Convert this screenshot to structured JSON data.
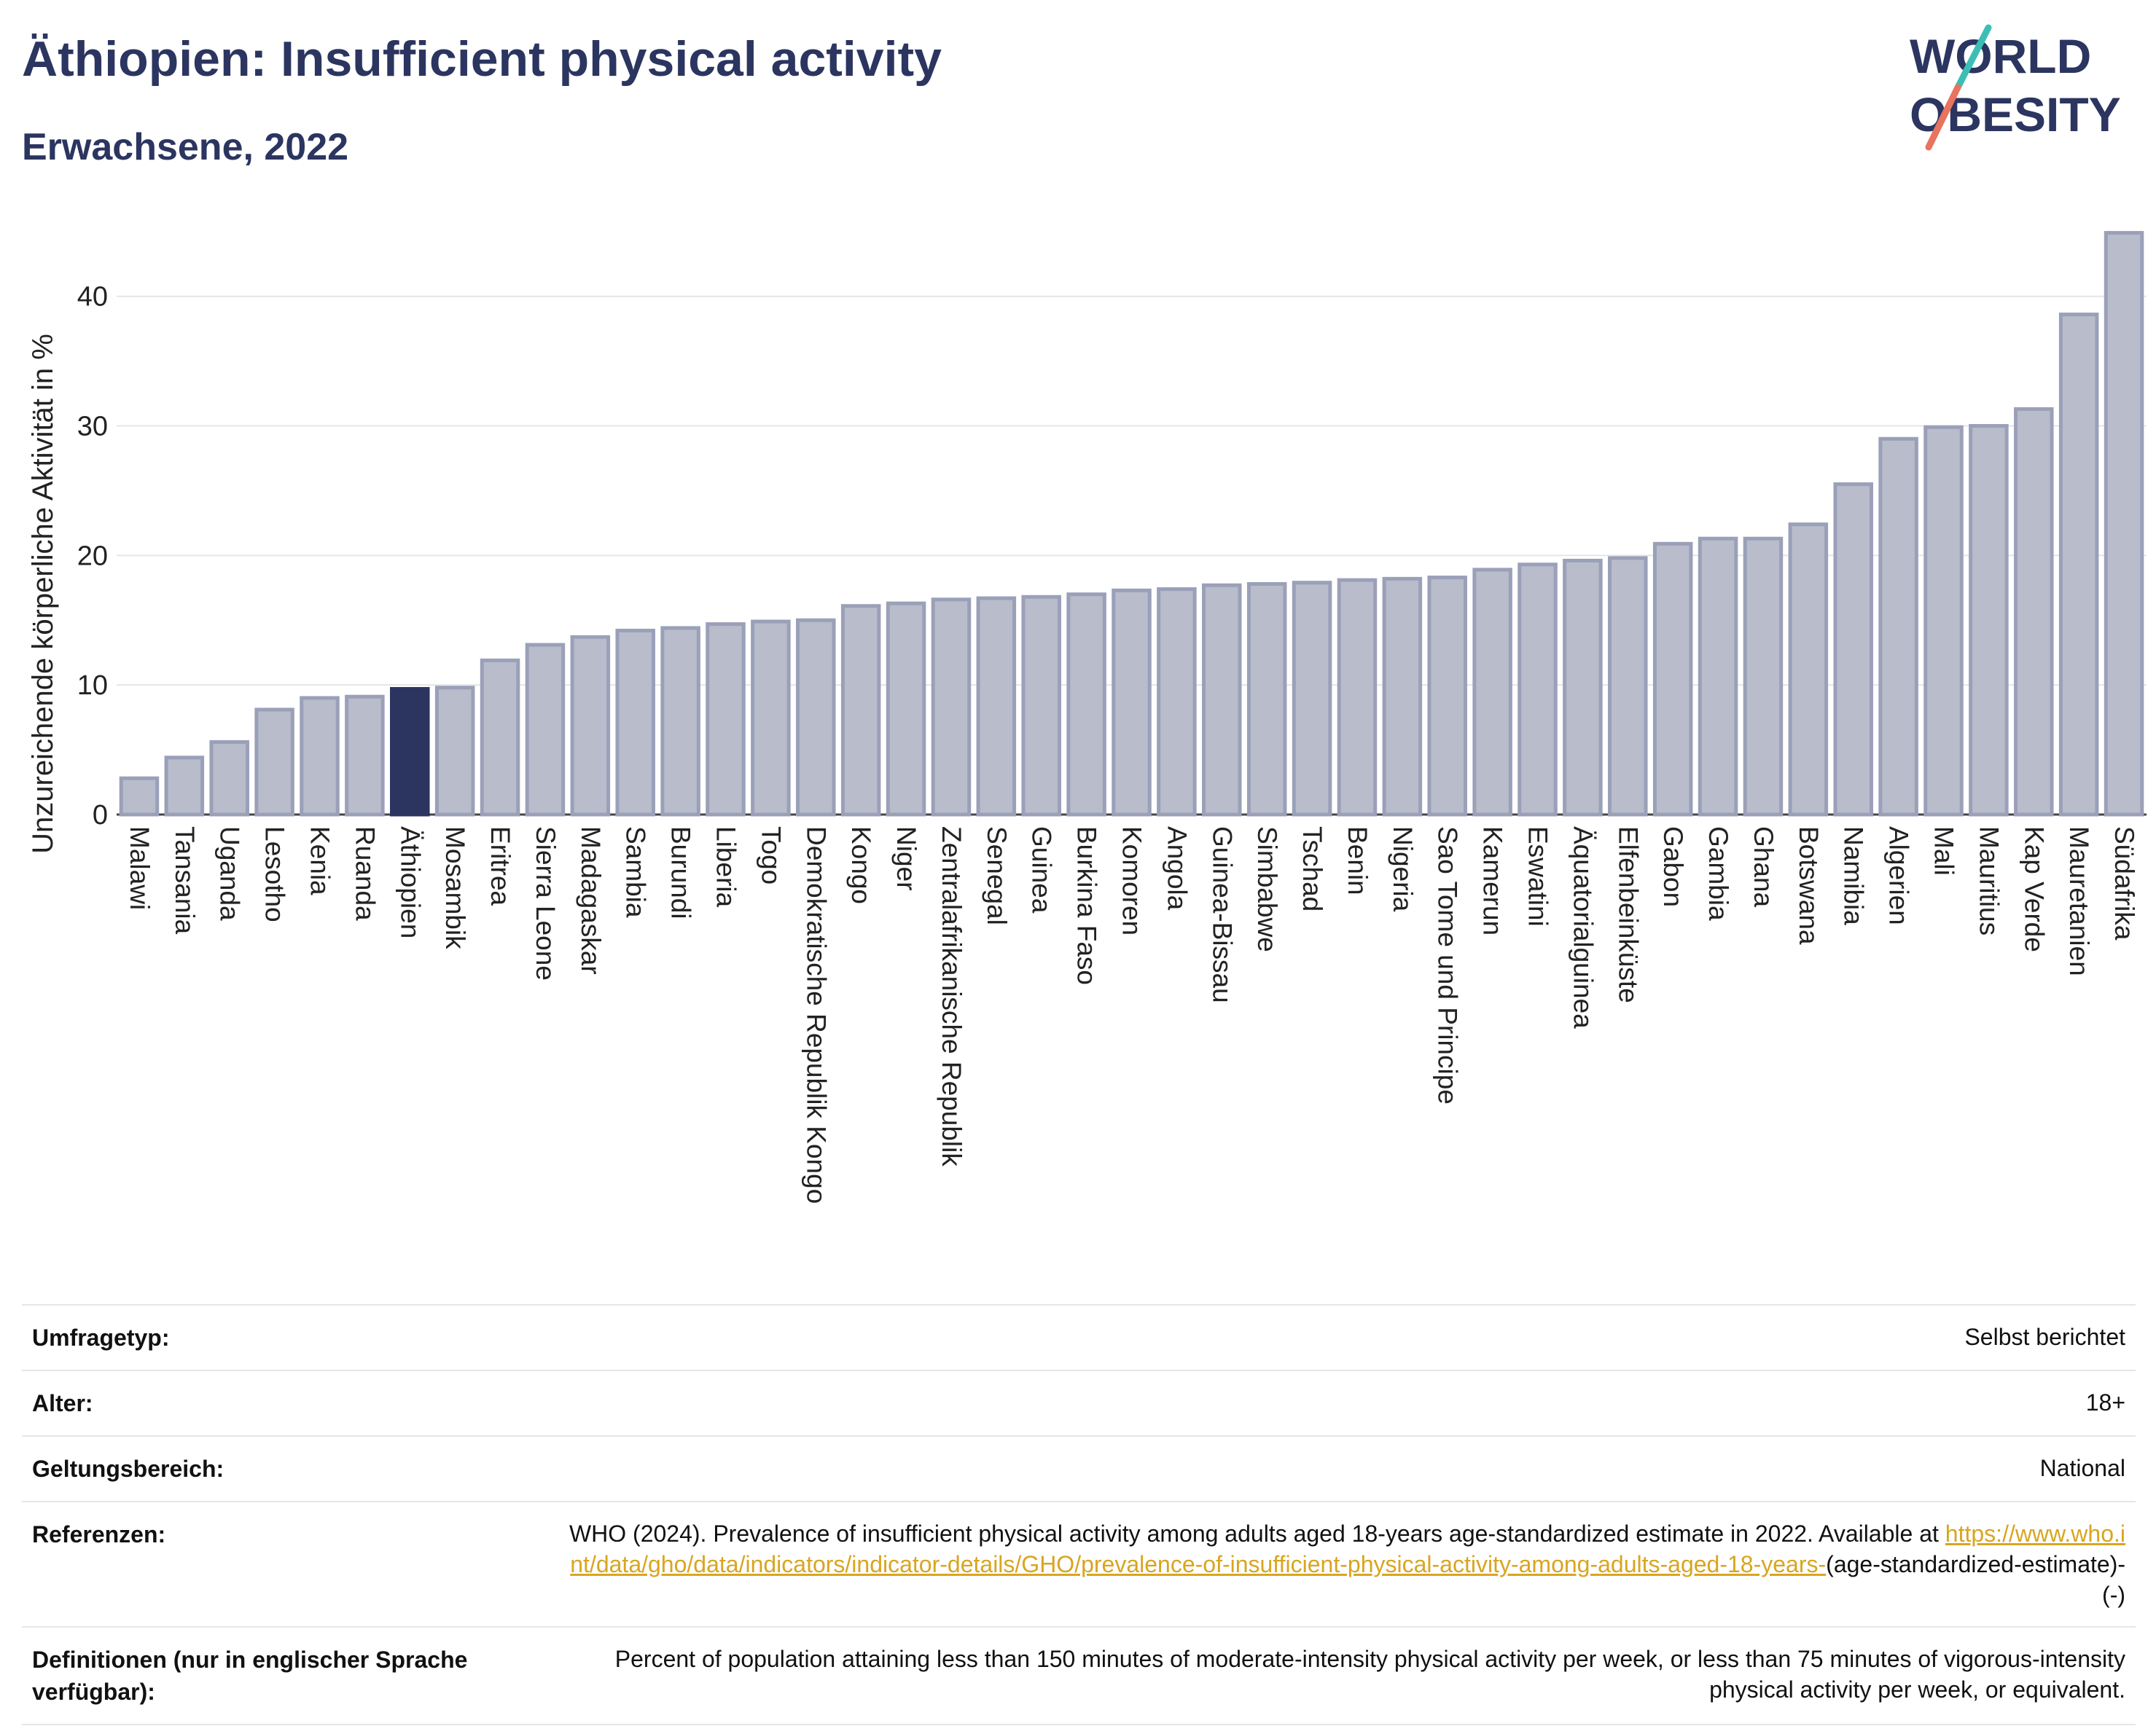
{
  "header": {
    "title": "Äthiopien: Insufficient physical activity",
    "subtitle": "Erwachsene, 2022",
    "logo_line1": "WORLD",
    "logo_line2": "OBESITY"
  },
  "colors": {
    "title": "#2b3560",
    "bar": "#b8bccb",
    "bar_stroke": "#9aa0b8",
    "highlight": "#2b3560",
    "link": "#d9a520",
    "logo_teal": "#3bbfb5",
    "logo_coral": "#e8735e"
  },
  "chart_data": {
    "type": "bar",
    "ylabel": "Unzureichende körperliche Aktivität in %",
    "ylim": [
      0,
      46
    ],
    "yticks": [
      0,
      10,
      20,
      30,
      40
    ],
    "grid": true,
    "highlight": "Äthiopien",
    "categories": [
      "Malawi",
      "Tansania",
      "Uganda",
      "Lesotho",
      "Kenia",
      "Ruanda",
      "Äthiopien",
      "Mosambik",
      "Eritrea",
      "Sierra Leone",
      "Madagaskar",
      "Sambia",
      "Burundi",
      "Liberia",
      "Togo",
      "Demokratische Republik Kongo",
      "Kongo",
      "Niger",
      "Zentralafrikanische Republik",
      "Senegal",
      "Guinea",
      "Burkina Faso",
      "Komoren",
      "Angola",
      "Guinea-Bissau",
      "Simbabwe",
      "Tschad",
      "Benin",
      "Nigeria",
      "Sao Tome und Principe",
      "Kamerun",
      "Eswatini",
      "Äquatorialguinea",
      "Elfenbeinküste",
      "Gabon",
      "Gambia",
      "Ghana",
      "Botswana",
      "Namibia",
      "Algerien",
      "Mali",
      "Mauritius",
      "Kap Verde",
      "Mauretanien",
      "Südafrika"
    ],
    "values": [
      2.8,
      4.4,
      5.6,
      8.1,
      9.0,
      9.1,
      9.7,
      9.8,
      11.9,
      13.1,
      13.7,
      14.2,
      14.4,
      14.7,
      14.9,
      15.0,
      16.1,
      16.3,
      16.6,
      16.7,
      16.8,
      17.0,
      17.3,
      17.4,
      17.7,
      17.8,
      17.9,
      18.1,
      18.2,
      18.3,
      18.9,
      19.3,
      19.6,
      19.8,
      20.9,
      21.3,
      21.3,
      22.4,
      25.5,
      29.0,
      29.9,
      30.0,
      31.3,
      38.6,
      44.9
    ]
  },
  "info": {
    "survey_label": "Umfragetyp:",
    "survey_value": "Selbst berichtet",
    "age_label": "Alter:",
    "age_value": "18+",
    "scope_label": "Geltungsbereich:",
    "scope_value": "National",
    "ref_label": "Referenzen:",
    "ref_text": "WHO (2024). Prevalence of insufficient physical activity among adults aged 18-years age-standardized estimate in 2022. Available at",
    "ref_link": "https://www.who.int/data/gho/data/indicators/indicator-details/GHO/prevalence-of-insufficient-physical-activity-among-adults-aged-18-years-",
    "ref_suffix": "(age-standardized-estimate)-(-)",
    "def_label": "Definitionen (nur in englischer Sprache verfügbar):",
    "def_text": "Percent of population attaining less than 150 minutes of moderate-intensity physical activity per week, or less than 75 minutes of vigorous-intensity physical activity per week, or equivalent."
  }
}
